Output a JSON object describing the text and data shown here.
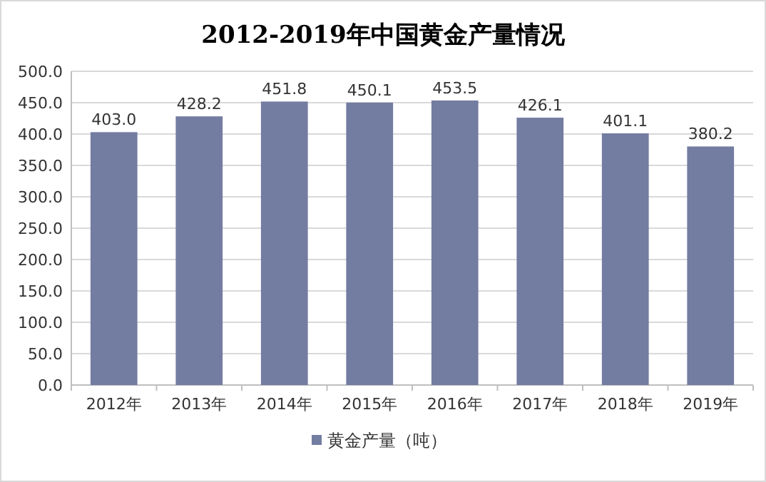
{
  "chart_data": {
    "type": "bar",
    "title": "2012-2019年中国黄金产量情况",
    "categories": [
      "2012年",
      "2013年",
      "2014年",
      "2015年",
      "2016年",
      "2017年",
      "2018年",
      "2019年"
    ],
    "series": [
      {
        "name": "黄金产量（吨）",
        "color": "#737ca1",
        "values": [
          403.0,
          428.2,
          451.8,
          450.1,
          453.5,
          426.1,
          401.1,
          380.2
        ],
        "value_labels": [
          "403.0",
          "428.2",
          "451.8",
          "450.1",
          "453.5",
          "426.1",
          "401.1",
          "380.2"
        ]
      }
    ],
    "ylim": [
      0,
      500
    ],
    "yticks": [
      {
        "value": 0,
        "label": "0.0"
      },
      {
        "value": 50,
        "label": "50.0"
      },
      {
        "value": 100,
        "label": "100.0"
      },
      {
        "value": 150,
        "label": "150.0"
      },
      {
        "value": 200,
        "label": "200.0"
      },
      {
        "value": 250,
        "label": "250.0"
      },
      {
        "value": 300,
        "label": "300.0"
      },
      {
        "value": 350,
        "label": "350.0"
      },
      {
        "value": 400,
        "label": "400.0"
      },
      {
        "value": 450,
        "label": "450.0"
      },
      {
        "value": 500,
        "label": "500.0"
      }
    ],
    "grid": "y",
    "legend": "bottom"
  }
}
